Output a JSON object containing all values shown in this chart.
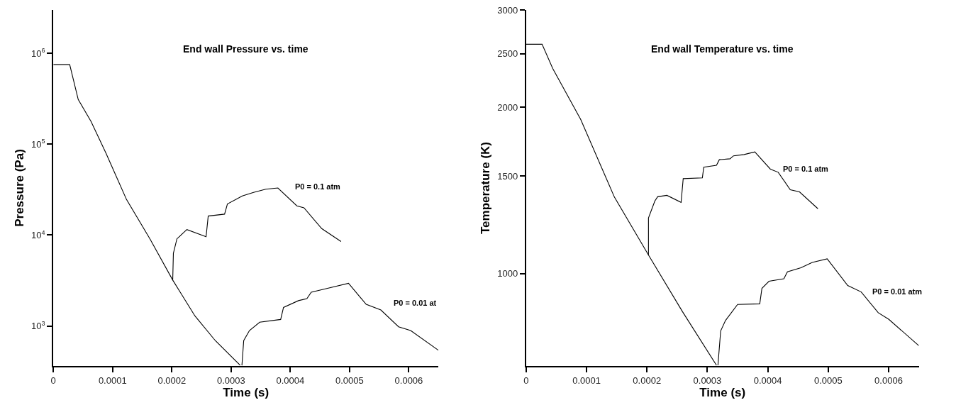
{
  "chart_data": [
    {
      "type": "line",
      "title": "End wall Pressure vs. time",
      "xlabel": "Time (s)",
      "ylabel": "Pressure (Pa)",
      "log": "y",
      "legend": false,
      "marker": "none",
      "line_style": "solid",
      "xlim": [
        0,
        0.00065
      ],
      "xticks": [
        0,
        0.0001,
        0.0002,
        0.0003,
        0.0004,
        0.0005,
        0.0006
      ],
      "ylim": [
        363,
        3000000
      ],
      "yticks": [
        {
          "value": 1000,
          "label": "10$^{3}$"
        },
        {
          "value": 10000,
          "label": "10$^{4}$"
        },
        {
          "value": 100000,
          "label": "10$^{5}$"
        },
        {
          "value": 1000000,
          "label": "10$^{6}$"
        }
      ],
      "series": [
        {
          "color": "#000000",
          "x": [
            0,
            2.76e-05,
            4.2e-05,
            6.36e-05,
            8.87e-05,
            0.0001235,
            0.000163,
            0.0002015,
            0.000239,
            0.0002734,
            0.0003153
          ],
          "values": [
            750000,
            750000,
            310000,
            178000,
            80000,
            24600,
            9100,
            3200,
            1290,
            690,
            370
          ]
        },
        {
          "name": "P0 = 0.1 atm",
          "color": "#000000",
          "x": [
            0.0002015,
            0.0002026,
            0.0002086,
            0.0002254,
            0.0002578,
            0.0002614,
            0.000289,
            0.0002938,
            0.000319,
            0.000338,
            0.0003585,
            0.000379,
            0.000411,
            0.000423,
            0.000453,
            0.0004856
          ],
          "values": [
            3200,
            6300,
            9100,
            11500,
            9600,
            16200,
            17000,
            22000,
            27000,
            29500,
            32000,
            33000,
            21000,
            20000,
            11800,
            8500
          ]
        },
        {
          "name": "P0 = 0.01 at",
          "color": "#000000",
          "x": [
            0.0003183,
            0.0003213,
            0.000331,
            0.0003483,
            0.0003837,
            0.0003885,
            0.0004137,
            0.000428,
            0.0004353,
            0.0004628,
            0.0004982,
            0.000528,
            0.0005528,
            0.0005827,
            0.0006031,
            0.00065
          ],
          "values": [
            369,
            690,
            890,
            1100,
            1180,
            1600,
            1900,
            2000,
            2350,
            2600,
            2950,
            1730,
            1500,
            980,
            890,
            540
          ]
        }
      ]
    },
    {
      "type": "line",
      "title": "End wall Temperature vs. time",
      "xlabel": "Time (s)",
      "ylabel": "Temperature (K)",
      "log": "y",
      "legend": false,
      "marker": "none",
      "line_style": "solid",
      "xlim": [
        0,
        0.00065
      ],
      "xticks": [
        0,
        0.0001,
        0.0002,
        0.0003,
        0.0004,
        0.0005,
        0.0006
      ],
      "ylim": [
        680,
        3000
      ],
      "yticks": [
        1000,
        1500,
        2000,
        2500,
        3000
      ],
      "series": [
        {
          "color": "#000000",
          "x": [
            0,
            2.64e-05,
            4.4e-05,
            9.04e-05,
            0.0001461,
            0.0002025,
            0.0002588,
            0.0003151
          ],
          "values": [
            2600,
            2600,
            2350,
            1900,
            1375,
            1080,
            853,
            682
          ]
        },
        {
          "name": "P0 = 0.1 atm",
          "color": "#000000",
          "x": [
            0.0002025,
            0.0002025,
            0.000213,
            0.0002177,
            0.000233,
            0.0002565,
            0.00026,
            0.0002917,
            0.000294,
            0.0003151,
            0.0003198,
            0.0003374,
            0.0003433,
            0.0003609,
            0.0003785,
            0.0004043,
            0.0004172,
            0.0004372,
            0.0004525,
            0.000483
          ],
          "values": [
            1080,
            1260,
            1352,
            1377,
            1385,
            1345,
            1485,
            1490,
            1557,
            1570,
            1607,
            1613,
            1633,
            1642,
            1660,
            1545,
            1525,
            1418,
            1405,
            1310
          ]
        },
        {
          "name": "P0 = 0.01 atm",
          "color": "#000000",
          "x": [
            0.0003175,
            0.000322,
            0.00033,
            0.00035,
            0.0003867,
            0.0003903,
            0.000402,
            0.0004266,
            0.0004325,
            0.0004548,
            0.0004736,
            0.0004983,
            0.0005323,
            0.0005546,
            0.0005828,
            0.0006004,
            0.00065
          ],
          "values": [
            682,
            787,
            822,
            879,
            881,
            940,
            968,
            978,
            1007,
            1024,
            1047,
            1063,
            951,
            926,
            849,
            826,
            740
          ]
        }
      ]
    }
  ]
}
